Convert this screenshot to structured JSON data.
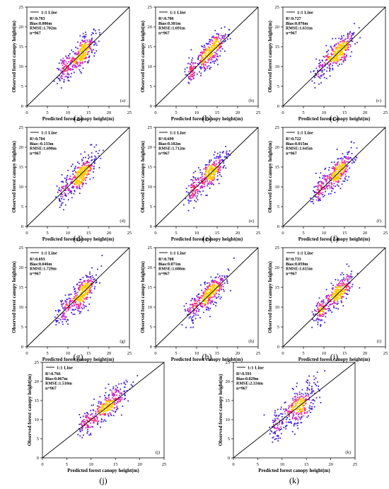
{
  "axes": {
    "xlabel": "Predicted forest canopy height(m)",
    "ylabel": "Observed forest canopy height(m)",
    "ticks": [
      "0",
      "5",
      "10",
      "15",
      "20",
      "25"
    ],
    "legend": "1:1 Line"
  },
  "colors": {
    "points_sparse": "#3a1fd6",
    "points_mid": "#c028c8",
    "points_dense": "#ff2a7a",
    "points_core": "#ffcc00",
    "line": "#000000"
  },
  "chart_data": [
    {
      "type": "scatter",
      "panel": "(a)",
      "caption": "(a)",
      "r2": "R²:0.703",
      "bias": "Bias:0.006m",
      "rmse": "RMSE:1.702m",
      "n": "n=967",
      "xlim": [
        0,
        25
      ],
      "ylim": [
        0,
        25
      ],
      "x_center": 13.0,
      "y_center": 13.0,
      "spread": 1.7
    },
    {
      "type": "scatter",
      "panel": "(b)",
      "caption": "(b)",
      "r2": "R²:0.706",
      "bias": "Bias:0.301m",
      "rmse": "RMSE:1.691m",
      "n": "n=967",
      "xlim": [
        0,
        25
      ],
      "ylim": [
        0,
        25
      ],
      "x_center": 13.0,
      "y_center": 13.3,
      "spread": 1.69
    },
    {
      "type": "scatter",
      "panel": "(c)",
      "caption": "(c)",
      "r2": "R²:0.727",
      "bias": "Bias:0.076m",
      "rmse": "RMSE:1.631m",
      "n": "n=967",
      "xlim": [
        0,
        25
      ],
      "ylim": [
        0,
        25
      ],
      "x_center": 13.0,
      "y_center": 13.1,
      "spread": 1.63
    },
    {
      "type": "scatter",
      "panel": "(d)",
      "caption": "(d)",
      "r2": "R²:0.704",
      "bias": "Bias:-0.133m",
      "rmse": "RMSE:1.698m",
      "n": "n=967",
      "xlim": [
        0,
        25
      ],
      "ylim": [
        0,
        25
      ],
      "x_center": 13.0,
      "y_center": 12.9,
      "spread": 1.7
    },
    {
      "type": "scatter",
      "panel": "(e)",
      "caption": "(e)",
      "r2": "R²:0.699",
      "bias": "Bias:0.102m",
      "rmse": "RMSE:1.712m",
      "n": "n=967",
      "xlim": [
        0,
        25
      ],
      "ylim": [
        0,
        25
      ],
      "x_center": 13.0,
      "y_center": 13.1,
      "spread": 1.71
    },
    {
      "type": "scatter",
      "panel": "(f)",
      "caption": "(f)",
      "r2": "R²:0.722",
      "bias": "Bias:0.015m",
      "rmse": "RMSE:1.645m",
      "n": "n=967",
      "xlim": [
        0,
        25
      ],
      "ylim": [
        0,
        25
      ],
      "x_center": 13.0,
      "y_center": 13.0,
      "spread": 1.65
    },
    {
      "type": "scatter",
      "panel": "(g)",
      "caption": "(g)",
      "r2": "R²:0.693",
      "bias": "Bias:0.046m",
      "rmse": "RMSE:1.729m",
      "n": "n=967",
      "xlim": [
        0,
        25
      ],
      "ylim": [
        0,
        25
      ],
      "x_center": 13.0,
      "y_center": 13.0,
      "spread": 1.73
    },
    {
      "type": "scatter",
      "panel": "(h)",
      "caption": "(h)",
      "r2": "R²:0.708",
      "bias": "Bias:0.071m",
      "rmse": "RMSE:1.686m",
      "n": "n=967",
      "xlim": [
        0,
        25
      ],
      "ylim": [
        0,
        25
      ],
      "x_center": 13.0,
      "y_center": 13.1,
      "spread": 1.69
    },
    {
      "type": "scatter",
      "panel": "(i)",
      "caption": "(i)",
      "r2": "R²:0.733",
      "bias": "Bias:0.059m",
      "rmse": "RMSE:1.615m",
      "n": "n=967",
      "xlim": [
        0,
        25
      ],
      "ylim": [
        0,
        25
      ],
      "x_center": 13.0,
      "y_center": 13.1,
      "spread": 1.62
    },
    {
      "type": "scatter",
      "panel": "(j)",
      "caption": "(j)",
      "r2": "R²:0.766",
      "bias": "Bias:0.067m",
      "rmse": "RMSE:1.510m",
      "n": "n=967",
      "xlim": [
        0,
        25
      ],
      "ylim": [
        0,
        25
      ],
      "x_center": 13.0,
      "y_center": 13.1,
      "spread": 1.51
    },
    {
      "type": "scatter",
      "panel": "(k)",
      "caption": "(k)",
      "r2": "R²:0.591",
      "bias": "Bias:0.029m",
      "rmse": "RMSE:2.334m",
      "n": "n=967",
      "xlim": [
        0,
        25
      ],
      "ylim": [
        0,
        25
      ],
      "x_center": 13.0,
      "y_center": 13.0,
      "spread": 2.33
    }
  ]
}
